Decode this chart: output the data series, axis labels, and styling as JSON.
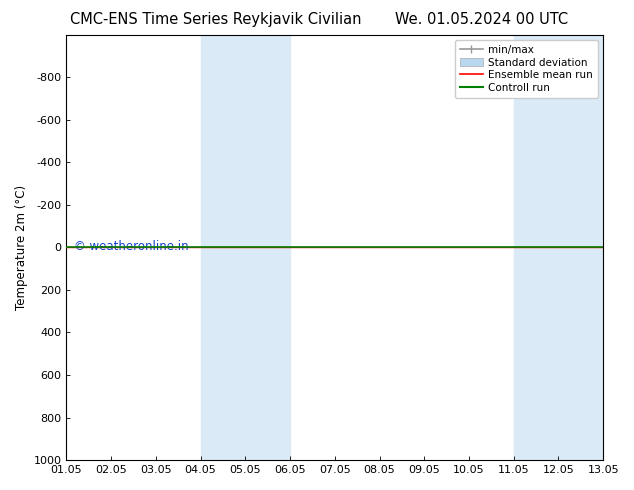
{
  "title_left": "CMC-ENS Time Series Reykjavik Civilian",
  "title_right": "We. 01.05.2024 00 UTC",
  "ylabel": "Temperature 2m (°C)",
  "xlim_start": 0,
  "xlim_end": 12,
  "ylim_bottom": 1000,
  "ylim_top": -1000,
  "yticks": [
    -800,
    -600,
    -400,
    -200,
    0,
    200,
    400,
    600,
    800,
    1000
  ],
  "xtick_labels": [
    "01.05",
    "02.05",
    "03.05",
    "04.05",
    "05.05",
    "06.05",
    "07.05",
    "08.05",
    "09.05",
    "10.05",
    "11.05",
    "12.05",
    "13.05"
  ],
  "shaded_bands": [
    {
      "x_start": 3,
      "x_end": 5,
      "color": "#daeaf6"
    },
    {
      "x_start": 10,
      "x_end": 12,
      "color": "#daeaf6"
    }
  ],
  "horizontal_line_y": 0,
  "horizontal_line_color_green": "#008000",
  "horizontal_line_color_red": "#ff0000",
  "watermark_text": "© weatheronline.in",
  "watermark_color": "#1144cc",
  "legend_items": [
    {
      "label": "min/max",
      "color": "#999999",
      "lw": 1.2
    },
    {
      "label": "Standard deviation",
      "color": "#b8d8f0",
      "lw": 7
    },
    {
      "label": "Ensemble mean run",
      "color": "#ff0000",
      "lw": 1.2
    },
    {
      "label": "Controll run",
      "color": "#008000",
      "lw": 1.5
    }
  ],
  "background_color": "#ffffff",
  "plot_bg_color": "#ffffff",
  "spine_color": "#000000",
  "title_fontsize": 10.5,
  "axis_label_fontsize": 8.5,
  "tick_fontsize": 8,
  "watermark_fontsize": 8.5,
  "legend_fontsize": 7.5
}
